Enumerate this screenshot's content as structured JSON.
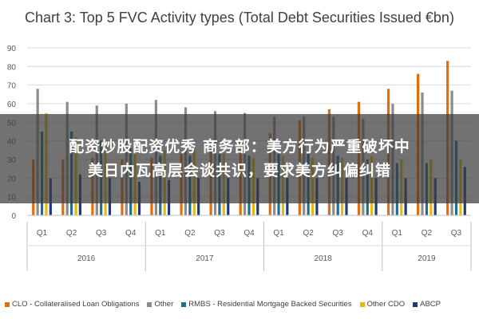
{
  "chart_data": {
    "type": "bar",
    "title": "Chart 3: Top 5 FVC Activity types (Total Debt Securities Issued €bn)",
    "ylim": [
      0,
      90
    ],
    "yticks": [
      0,
      10,
      20,
      30,
      40,
      50,
      60,
      70,
      80,
      90
    ],
    "grid": true,
    "legend_position": "bottom",
    "categories": [
      "Q1",
      "Q2",
      "Q3",
      "Q4",
      "Q1",
      "Q2",
      "Q3",
      "Q4",
      "Q1",
      "Q2",
      "Q3",
      "Q4",
      "Q1",
      "Q2",
      "Q3"
    ],
    "groups": [
      {
        "label": "2016",
        "quarters": 4
      },
      {
        "label": "2017",
        "quarters": 4
      },
      {
        "label": "2018",
        "quarters": 4
      },
      {
        "label": "2019",
        "quarters": 3
      }
    ],
    "series": [
      {
        "name": "CLO - Collateralised Loan Obligations",
        "color": "#e46c0a",
        "values": [
          30,
          30,
          31,
          30,
          31,
          33,
          37,
          40,
          44,
          51,
          57,
          61,
          68,
          76,
          83
        ]
      },
      {
        "name": "Other",
        "color": "#8c8c8c",
        "values": [
          68,
          61,
          59,
          60,
          62,
          58,
          56,
          55,
          53,
          53,
          53,
          52,
          60,
          66,
          67
        ]
      },
      {
        "name": "RMBS - Residential Mortgage Backed Securities",
        "color": "#1f6e8c",
        "values": [
          45,
          45,
          40,
          36,
          32,
          32,
          33,
          32,
          33,
          33,
          32,
          30,
          28,
          28,
          40
        ]
      },
      {
        "name": "Other CDO",
        "color": "#e8b90c",
        "values": [
          55,
          42,
          38,
          33,
          35,
          35,
          33,
          31,
          32,
          31,
          31,
          32,
          30,
          30,
          30
        ]
      },
      {
        "name": "ABCP",
        "color": "#1f3a7a",
        "values": [
          20,
          22,
          20,
          18,
          19,
          20,
          20,
          20,
          20,
          20,
          20,
          20,
          20,
          20,
          26
        ]
      }
    ]
  },
  "overlay": {
    "line1": "配资炒股配资优秀 商务部：美方行为严重破坏中",
    "line2": "美日内瓦高层会谈共识，要求美方纠偏纠错"
  }
}
